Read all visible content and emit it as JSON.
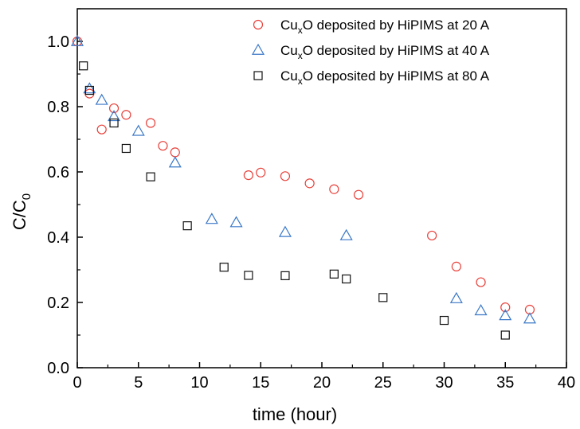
{
  "chart_data": {
    "type": "scatter",
    "xlabel": "time (hour)",
    "ylabel_main": "C/C",
    "ylabel_sub": "0",
    "xlim": [
      0,
      40
    ],
    "ylim": [
      0.0,
      1.1
    ],
    "x_ticks": [
      0,
      5,
      10,
      15,
      20,
      25,
      30,
      35,
      40
    ],
    "y_ticks": [
      0.0,
      0.2,
      0.4,
      0.6,
      0.8,
      1.0
    ],
    "y_tick_labels": [
      "0.0",
      "0.2",
      "0.4",
      "0.6",
      "0.8",
      "1.0"
    ],
    "grid": false,
    "legend_position": "top-right",
    "series": [
      {
        "name_pre": "Cu",
        "name_sub": "x",
        "name_post": "O deposited by HiPIMS at 20 A",
        "marker": "circle",
        "color": "#e8403a",
        "points": [
          [
            0,
            1.0
          ],
          [
            1,
            0.84
          ],
          [
            2,
            0.73
          ],
          [
            3,
            0.795
          ],
          [
            4,
            0.775
          ],
          [
            6,
            0.75
          ],
          [
            7,
            0.68
          ],
          [
            8,
            0.66
          ],
          [
            14,
            0.59
          ],
          [
            15,
            0.598
          ],
          [
            17,
            0.587
          ],
          [
            19,
            0.565
          ],
          [
            21,
            0.547
          ],
          [
            23,
            0.53
          ],
          [
            29,
            0.405
          ],
          [
            31,
            0.31
          ],
          [
            33,
            0.262
          ],
          [
            35,
            0.185
          ],
          [
            37,
            0.178
          ]
        ]
      },
      {
        "name_pre": "Cu",
        "name_sub": "x",
        "name_post": "O deposited by HiPIMS at 40 A",
        "marker": "triangle",
        "color": "#3a78c8",
        "points": [
          [
            0,
            1.0
          ],
          [
            1,
            0.855
          ],
          [
            2,
            0.82
          ],
          [
            3,
            0.77
          ],
          [
            5,
            0.725
          ],
          [
            8,
            0.628
          ],
          [
            11,
            0.455
          ],
          [
            13,
            0.445
          ],
          [
            17,
            0.415
          ],
          [
            22,
            0.405
          ],
          [
            31,
            0.212
          ],
          [
            33,
            0.175
          ],
          [
            35,
            0.16
          ],
          [
            37,
            0.15
          ]
        ]
      },
      {
        "name_pre": "Cu",
        "name_sub": "x",
        "name_post": "O deposited by HiPIMS at 80 A",
        "marker": "square",
        "color": "#111111",
        "points": [
          [
            0.5,
            0.925
          ],
          [
            1,
            0.85
          ],
          [
            3,
            0.75
          ],
          [
            4,
            0.672
          ],
          [
            6,
            0.585
          ],
          [
            9,
            0.435
          ],
          [
            12,
            0.308
          ],
          [
            14,
            0.283
          ],
          [
            17,
            0.282
          ],
          [
            21,
            0.287
          ],
          [
            22,
            0.272
          ],
          [
            25,
            0.215
          ],
          [
            30,
            0.145
          ],
          [
            35,
            0.1
          ]
        ]
      }
    ]
  }
}
